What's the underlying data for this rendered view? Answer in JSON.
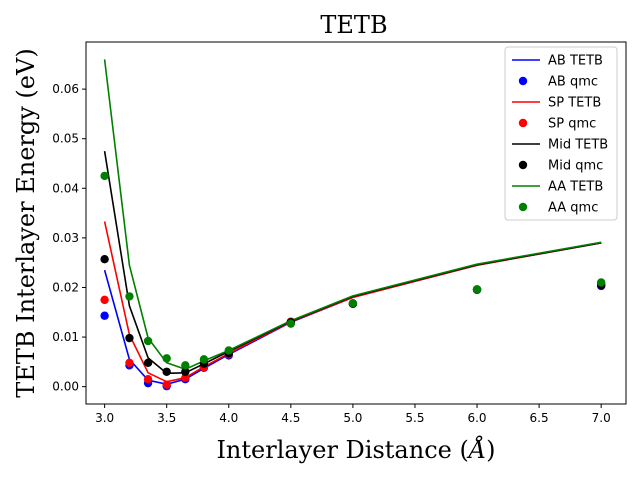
{
  "chart_data": {
    "type": "line",
    "title": "TETB",
    "xlabel": "Interlayer Distance (",
    "xlabel_unit": "Å",
    "xlabel_close": ")",
    "ylabel": "TETB Interlayer Energy (eV)",
    "xlim": [
      2.85,
      7.2
    ],
    "ylim": [
      -0.0035,
      0.0695
    ],
    "x_ticks": [
      3.0,
      3.5,
      4.0,
      4.5,
      5.0,
      5.5,
      6.0,
      6.5,
      7.0
    ],
    "x_tick_labels": [
      "3.0",
      "3.5",
      "4.0",
      "4.5",
      "5.0",
      "5.5",
      "6.0",
      "6.5",
      "7.0"
    ],
    "y_ticks": [
      0.0,
      0.01,
      0.02,
      0.03,
      0.04,
      0.05,
      0.06
    ],
    "y_tick_labels": [
      "0.00",
      "0.01",
      "0.02",
      "0.03",
      "0.04",
      "0.05",
      "0.06"
    ],
    "legend_position": "top-right",
    "series": [
      {
        "name": "AB TETB",
        "kind": "line",
        "color": "#0000ff",
        "x": [
          3.0,
          3.2,
          3.35,
          3.5,
          3.65,
          3.8,
          4.0,
          4.5,
          5.0,
          6.0,
          7.0
        ],
        "y": [
          0.0235,
          0.0055,
          0.0013,
          0.0005,
          0.0015,
          0.0037,
          0.0065,
          0.013,
          0.018,
          0.0245,
          0.029
        ]
      },
      {
        "name": "AB qmc",
        "kind": "scatter",
        "color": "#0000ff",
        "x": [
          3.0,
          3.2,
          3.35,
          3.5,
          3.65,
          3.8,
          4.0,
          4.5,
          5.0,
          6.0,
          7.0
        ],
        "y": [
          0.0143,
          0.0043,
          0.0007,
          0.0001,
          0.0015,
          0.0038,
          0.0063,
          0.013,
          0.0167,
          0.0195,
          0.0203
        ]
      },
      {
        "name": "SP TETB",
        "kind": "line",
        "color": "#ff0000",
        "x": [
          3.0,
          3.2,
          3.35,
          3.5,
          3.65,
          3.8,
          4.0,
          4.5,
          5.0,
          6.0,
          7.0
        ],
        "y": [
          0.0333,
          0.0105,
          0.0028,
          0.001,
          0.0018,
          0.004,
          0.0067,
          0.0131,
          0.018,
          0.0245,
          0.029
        ]
      },
      {
        "name": "SP qmc",
        "kind": "scatter",
        "color": "#ff0000",
        "x": [
          3.0,
          3.2,
          3.35,
          3.5,
          3.65,
          3.8,
          4.0,
          4.5,
          5.0,
          6.0,
          7.0
        ],
        "y": [
          0.0175,
          0.0048,
          0.0015,
          0.0004,
          0.0018,
          0.0039,
          0.0065,
          0.0131,
          0.0168,
          0.0196,
          0.0205
        ]
      },
      {
        "name": "Mid TETB",
        "kind": "line",
        "color": "#000000",
        "x": [
          3.0,
          3.2,
          3.35,
          3.5,
          3.65,
          3.8,
          4.0,
          4.5,
          5.0,
          6.0,
          7.0
        ],
        "y": [
          0.0475,
          0.0163,
          0.0058,
          0.0027,
          0.0028,
          0.0046,
          0.0071,
          0.0132,
          0.0182,
          0.0246,
          0.029
        ]
      },
      {
        "name": "Mid qmc",
        "kind": "scatter",
        "color": "#000000",
        "x": [
          3.0,
          3.2,
          3.35,
          3.5,
          3.65,
          3.8,
          4.0,
          4.5,
          5.0,
          6.0,
          7.0
        ],
        "y": [
          0.0257,
          0.0098,
          0.0048,
          0.003,
          0.003,
          0.0046,
          0.0067,
          0.013,
          0.0167,
          0.0196,
          0.0205
        ]
      },
      {
        "name": "AA TETB",
        "kind": "line",
        "color": "#008000",
        "x": [
          3.0,
          3.2,
          3.35,
          3.5,
          3.65,
          3.8,
          4.0,
          4.5,
          5.0,
          6.0,
          7.0
        ],
        "y": [
          0.066,
          0.0245,
          0.0098,
          0.0048,
          0.0035,
          0.0052,
          0.0073,
          0.0133,
          0.0183,
          0.0247,
          0.0291
        ]
      },
      {
        "name": "AA qmc",
        "kind": "scatter",
        "color": "#008000",
        "x": [
          3.0,
          3.2,
          3.35,
          3.5,
          3.65,
          3.8,
          4.0,
          4.5,
          5.0,
          6.0,
          7.0
        ],
        "y": [
          0.0425,
          0.0182,
          0.0092,
          0.0057,
          0.0043,
          0.0055,
          0.0073,
          0.0127,
          0.0168,
          0.0196,
          0.021
        ]
      }
    ]
  }
}
